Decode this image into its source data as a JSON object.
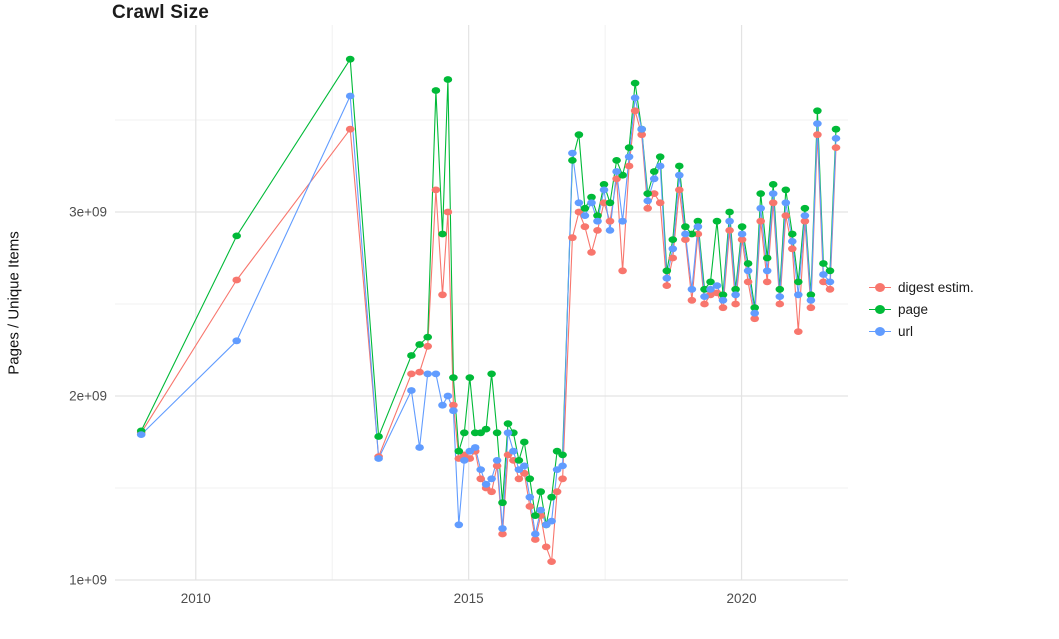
{
  "chart_data": {
    "type": "line",
    "title": "Crawl Size",
    "xlabel": "",
    "ylabel": "Pages / Unique Items",
    "grid": true,
    "legend_position": "right",
    "xlim": [
      2008.52,
      2021.95
    ],
    "ylim": [
      1000000000.0,
      4016000000.0
    ],
    "x_ticks": [
      2010,
      2015,
      2020
    ],
    "x_tick_labels": [
      "2010",
      "2015",
      "2020"
    ],
    "x_minor_ticks": [
      2012.5,
      2017.5
    ],
    "y_ticks": [
      1000000000.0,
      2000000000.0,
      3000000000.0
    ],
    "y_tick_labels": [
      "1e+09",
      "2e+09",
      "3e+09"
    ],
    "y_minor_ticks": [
      1500000000.0,
      2500000000.0,
      3500000000.0
    ],
    "colors": {
      "digest": "#F8766D",
      "page": "#00BA38",
      "url": "#619CFF",
      "grid_major": "#e3e3e3",
      "grid_minor": "#f1f1f1",
      "tick_text": "#4d4d4d"
    },
    "x": [
      2009.0,
      2010.75,
      2012.83,
      2013.35,
      2013.95,
      2014.1,
      2014.25,
      2014.4,
      2014.52,
      2014.62,
      2014.72,
      2014.82,
      2014.92,
      2015.02,
      2015.12,
      2015.22,
      2015.32,
      2015.42,
      2015.52,
      2015.62,
      2015.72,
      2015.82,
      2015.92,
      2016.02,
      2016.12,
      2016.22,
      2016.32,
      2016.42,
      2016.52,
      2016.62,
      2016.72,
      2016.9,
      2017.02,
      2017.13,
      2017.25,
      2017.36,
      2017.48,
      2017.59,
      2017.71,
      2017.82,
      2017.94,
      2018.05,
      2018.17,
      2018.28,
      2018.4,
      2018.51,
      2018.63,
      2018.74,
      2018.86,
      2018.97,
      2019.09,
      2019.2,
      2019.32,
      2019.43,
      2019.55,
      2019.66,
      2019.78,
      2019.89,
      2020.01,
      2020.12,
      2020.24,
      2020.35,
      2020.47,
      2020.58,
      2020.7,
      2020.81,
      2020.93,
      2021.04,
      2021.16,
      2021.27,
      2021.39,
      2021.5,
      2021.62,
      2021.73
    ],
    "series": [
      {
        "name": "digest estim.",
        "color": "#F8766D",
        "values": [
          1800000000.0,
          2630000000.0,
          3450000000.0,
          1670000000.0,
          2120000000.0,
          2130000000.0,
          2270000000.0,
          3120000000.0,
          2550000000.0,
          3000000000.0,
          1950000000.0,
          1660000000.0,
          1680000000.0,
          1660000000.0,
          1700000000.0,
          1550000000.0,
          1500000000.0,
          1480000000.0,
          1620000000.0,
          1250000000.0,
          1680000000.0,
          1650000000.0,
          1550000000.0,
          1580000000.0,
          1400000000.0,
          1220000000.0,
          1350000000.0,
          1180000000.0,
          1100000000.0,
          1480000000.0,
          1550000000.0,
          2860000000.0,
          3000000000.0,
          2920000000.0,
          2780000000.0,
          2900000000.0,
          3050000000.0,
          2950000000.0,
          3180000000.0,
          2680000000.0,
          3250000000.0,
          3550000000.0,
          3420000000.0,
          3020000000.0,
          3100000000.0,
          3050000000.0,
          2600000000.0,
          2750000000.0,
          3120000000.0,
          2850000000.0,
          2520000000.0,
          2880000000.0,
          2500000000.0,
          2550000000.0,
          2560000000.0,
          2480000000.0,
          2900000000.0,
          2500000000.0,
          2850000000.0,
          2620000000.0,
          2420000000.0,
          2950000000.0,
          2620000000.0,
          3050000000.0,
          2500000000.0,
          2980000000.0,
          2800000000.0,
          2350000000.0,
          2950000000.0,
          2480000000.0,
          3420000000.0,
          2620000000.0,
          2580000000.0,
          3350000000.0
        ]
      },
      {
        "name": "page",
        "color": "#00BA38",
        "values": [
          1810000000.0,
          2870000000.0,
          3830000000.0,
          1780000000.0,
          2220000000.0,
          2280000000.0,
          2320000000.0,
          3660000000.0,
          2880000000.0,
          3720000000.0,
          2100000000.0,
          1700000000.0,
          1800000000.0,
          2100000000.0,
          1800000000.0,
          1800000000.0,
          1820000000.0,
          2120000000.0,
          1800000000.0,
          1420000000.0,
          1850000000.0,
          1800000000.0,
          1650000000.0,
          1750000000.0,
          1550000000.0,
          1350000000.0,
          1480000000.0,
          1300000000.0,
          1450000000.0,
          1700000000.0,
          1680000000.0,
          3280000000.0,
          3420000000.0,
          3020000000.0,
          3080000000.0,
          2980000000.0,
          3150000000.0,
          3050000000.0,
          3280000000.0,
          3200000000.0,
          3350000000.0,
          3700000000.0,
          3450000000.0,
          3100000000.0,
          3220000000.0,
          3300000000.0,
          2680000000.0,
          2850000000.0,
          3250000000.0,
          2920000000.0,
          2880000000.0,
          2950000000.0,
          2580000000.0,
          2620000000.0,
          2950000000.0,
          2550000000.0,
          3000000000.0,
          2580000000.0,
          2920000000.0,
          2720000000.0,
          2480000000.0,
          3100000000.0,
          2750000000.0,
          3150000000.0,
          2580000000.0,
          3120000000.0,
          2880000000.0,
          2620000000.0,
          3020000000.0,
          2550000000.0,
          3550000000.0,
          2720000000.0,
          2680000000.0,
          3450000000.0
        ]
      },
      {
        "name": "url",
        "color": "#619CFF",
        "values": [
          1790000000.0,
          2300000000.0,
          3630000000.0,
          1660000000.0,
          2030000000.0,
          1720000000.0,
          2120000000.0,
          2120000000.0,
          1950000000.0,
          2000000000.0,
          1920000000.0,
          1300000000.0,
          1650000000.0,
          1700000000.0,
          1720000000.0,
          1600000000.0,
          1520000000.0,
          1550000000.0,
          1650000000.0,
          1280000000.0,
          1800000000.0,
          1700000000.0,
          1600000000.0,
          1620000000.0,
          1450000000.0,
          1250000000.0,
          1380000000.0,
          1300000000.0,
          1320000000.0,
          1600000000.0,
          1620000000.0,
          3320000000.0,
          3050000000.0,
          2980000000.0,
          3050000000.0,
          2950000000.0,
          3120000000.0,
          2900000000.0,
          3220000000.0,
          2950000000.0,
          3300000000.0,
          3620000000.0,
          3450000000.0,
          3060000000.0,
          3180000000.0,
          3250000000.0,
          2640000000.0,
          2800000000.0,
          3200000000.0,
          2880000000.0,
          2580000000.0,
          2920000000.0,
          2540000000.0,
          2580000000.0,
          2600000000.0,
          2520000000.0,
          2950000000.0,
          2550000000.0,
          2880000000.0,
          2680000000.0,
          2450000000.0,
          3020000000.0,
          2680000000.0,
          3100000000.0,
          2540000000.0,
          3050000000.0,
          2840000000.0,
          2550000000.0,
          2980000000.0,
          2520000000.0,
          3480000000.0,
          2660000000.0,
          2620000000.0,
          3400000000.0
        ]
      }
    ]
  }
}
